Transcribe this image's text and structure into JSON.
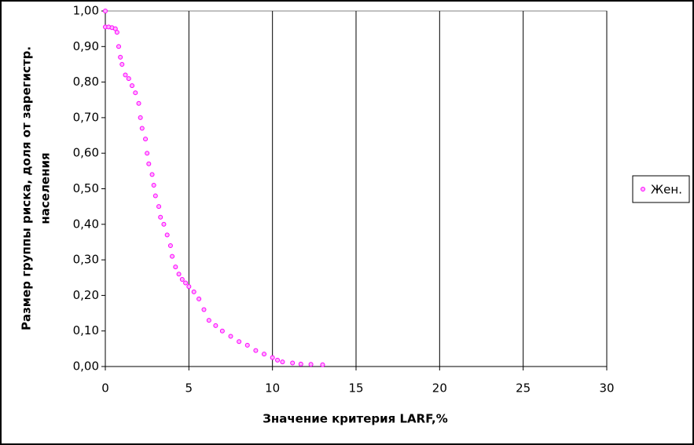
{
  "chart_data": {
    "type": "scatter",
    "x_label": "Значение критерия LARF,%",
    "y_label": [
      "Размер группы риска, доля от зарегистр.",
      "населения"
    ],
    "xlim": [
      0,
      30
    ],
    "xticks": [
      0,
      5,
      10,
      15,
      20,
      25,
      30
    ],
    "ylim": [
      0,
      1
    ],
    "yticks": [
      {
        "value": 0,
        "label": "0,00"
      },
      {
        "value": 0.1,
        "label": "0,10"
      },
      {
        "value": 0.2,
        "label": "0,20"
      },
      {
        "value": 0.3,
        "label": "0,30"
      },
      {
        "value": 0.4,
        "label": "0,40"
      },
      {
        "value": 0.5,
        "label": "0,50"
      },
      {
        "value": 0.6,
        "label": "0,60"
      },
      {
        "value": 0.7,
        "label": "0,70"
      },
      {
        "value": 0.8,
        "label": "0,80"
      },
      {
        "value": 0.9,
        "label": "0,90"
      },
      {
        "value": 1,
        "label": "1,00"
      }
    ],
    "grid": true,
    "legend": "right",
    "series": [
      {
        "name": "Жен.",
        "color": "#ff00ff",
        "x": [
          0,
          0,
          0.2,
          0.4,
          0.6,
          0.7,
          0.8,
          0.9,
          1.0,
          1.2,
          1.4,
          1.6,
          1.8,
          2.0,
          2.1,
          2.2,
          2.4,
          2.5,
          2.6,
          2.8,
          2.9,
          3.0,
          3.2,
          3.3,
          3.5,
          3.7,
          3.9,
          4.0,
          4.2,
          4.4,
          4.6,
          4.8,
          5.0,
          5.3,
          5.6,
          5.9,
          6.2,
          6.6,
          7.0,
          7.5,
          8.0,
          8.5,
          9.0,
          9.5,
          10.0,
          10.3,
          10.6,
          11.2,
          11.7,
          12.3,
          13.0
        ],
        "values": [
          1.0,
          0.955,
          0.955,
          0.953,
          0.95,
          0.94,
          0.9,
          0.87,
          0.85,
          0.82,
          0.81,
          0.79,
          0.77,
          0.74,
          0.7,
          0.67,
          0.64,
          0.6,
          0.57,
          0.54,
          0.51,
          0.48,
          0.45,
          0.42,
          0.4,
          0.37,
          0.34,
          0.31,
          0.28,
          0.26,
          0.245,
          0.235,
          0.225,
          0.21,
          0.19,
          0.16,
          0.13,
          0.115,
          0.1,
          0.085,
          0.07,
          0.06,
          0.045,
          0.035,
          0.025,
          0.018,
          0.013,
          0.01,
          0.007,
          0.006,
          0.005
        ]
      }
    ]
  }
}
